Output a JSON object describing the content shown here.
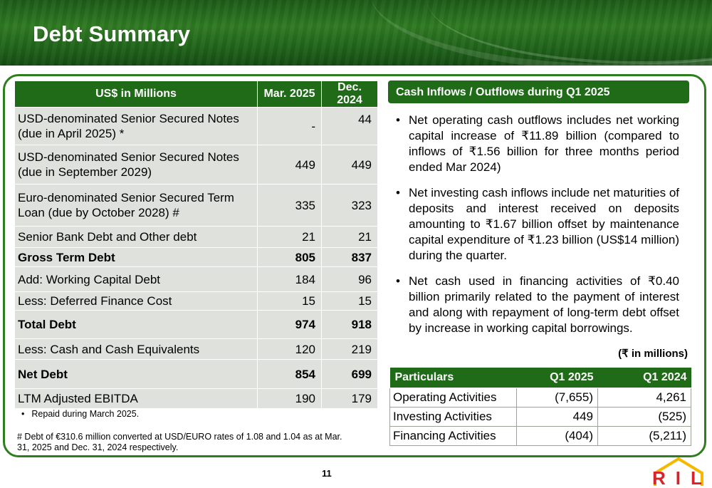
{
  "title": "Debt Summary",
  "debt_table": {
    "headers": [
      "US$ in Millions",
      "Mar. 2025",
      "Dec. 2024"
    ],
    "rows": [
      {
        "label": "USD-denominated Senior Secured Notes (due in April 2025) *",
        "mar": "-",
        "dec": "44",
        "bold": false
      },
      {
        "label": "USD-denominated Senior Secured Notes (due in September 2029)",
        "mar": "449",
        "dec": "449",
        "bold": false
      },
      {
        "label": "Euro-denominated Senior Secured Term Loan (due by October 2028) #",
        "mar": "335",
        "dec": "323",
        "bold": false
      },
      {
        "label": "Senior Bank Debt and Other debt",
        "mar": "21",
        "dec": "21",
        "bold": false
      },
      {
        "label": "Gross Term Debt",
        "mar": "805",
        "dec": "837",
        "bold": true
      },
      {
        "label": "Add: Working Capital Debt",
        "mar": "184",
        "dec": "96",
        "bold": false
      },
      {
        "label": "Less: Deferred Finance Cost",
        "mar": "15",
        "dec": "15",
        "bold": false
      },
      {
        "label": "Total Debt",
        "mar": "974",
        "dec": "918",
        "bold": true
      },
      {
        "label": "Less: Cash and Cash Equivalents",
        "mar": "120",
        "dec": "219",
        "bold": false
      },
      {
        "label": "Net Debt",
        "mar": "854",
        "dec": "699",
        "bold": true
      },
      {
        "label": "LTM Adjusted EBITDA",
        "mar": "190",
        "dec": "179",
        "bold": false
      }
    ]
  },
  "footnotes": {
    "bullet_glyph": "•",
    "note1": "Repaid during March 2025.",
    "note2": "# Debt of €310.6 million converted at USD/EURO rates of 1.08 and 1.04 as at Mar. 31, 2025 and Dec. 31, 2024 respectively."
  },
  "cash_section": {
    "header": "Cash Inflows / Outflows during Q1 2025",
    "bullet_glyph": "•",
    "bullets": [
      "Net operating cash outflows includes net working capital increase of ₹11.89 billion (compared to inflows of ₹1.56 billion for three months period ended Mar 2024)",
      "Net investing cash inflows include net maturities of deposits and interest received on deposits amounting to ₹1.67 billion offset by maintenance capital expenditure of ₹1.23 billion (US$14 million) during the quarter.",
      "Net cash used in financing activities of ₹0.40 billion primarily related to the payment of interest and along with repayment of long-term debt offset by increase in working capital borrowings."
    ],
    "unit_note": "(₹ in millions)",
    "table": {
      "headers": [
        "Particulars",
        "Q1 2025",
        "Q1 2024"
      ],
      "rows": [
        {
          "label": "Operating Activities",
          "q1_2025": "(7,655)",
          "q1_2024": "4,261"
        },
        {
          "label": "Investing Activities",
          "q1_2025": "449",
          "q1_2024": "(525)"
        },
        {
          "label": "Financing Activities",
          "q1_2025": "(404)",
          "q1_2024": "(5,211)"
        }
      ]
    }
  },
  "page_number": "11",
  "logo_text": "RIL",
  "colors": {
    "brand_green": "#1f6b18",
    "row_gray": "#dfe2dc",
    "logo_red": "#d8232a",
    "logo_yellow": "#f5b800"
  }
}
